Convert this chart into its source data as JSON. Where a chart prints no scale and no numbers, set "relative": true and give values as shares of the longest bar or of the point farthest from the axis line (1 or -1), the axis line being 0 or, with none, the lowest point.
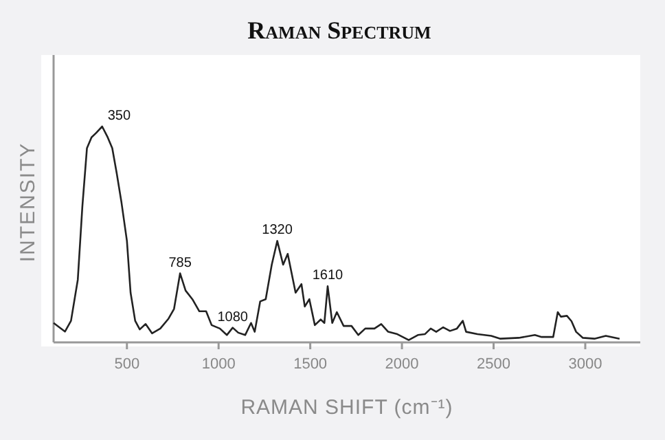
{
  "chart_data": {
    "type": "line",
    "title": "Raman Spectrum",
    "xlabel": "RAMAN SHIFT (cm⁻¹)",
    "ylabel": "INTENSITY",
    "relative": true,
    "xlim": [
      100,
      3300
    ],
    "xticks": [
      500,
      1000,
      1500,
      2000,
      2500,
      3000
    ],
    "tick_labels": "x",
    "marker": "none",
    "line_style": "solid",
    "series": [
      {
        "color": "#222222",
        "x": [
          100,
          162,
          195,
          232,
          257,
          282,
          307,
          332,
          365,
          395,
          420,
          445,
          470,
          500,
          520,
          545,
          570,
          602,
          637,
          682,
          727,
          757,
          790,
          820,
          857,
          895,
          932,
          962,
          1007,
          1045,
          1077,
          1107,
          1145,
          1177,
          1197,
          1227,
          1257,
          1290,
          1320,
          1352,
          1377,
          1420,
          1452,
          1470,
          1495,
          1525,
          1557,
          1577,
          1595,
          1620,
          1645,
          1682,
          1725,
          1762,
          1800,
          1850,
          1887,
          1925,
          1975,
          2037,
          2087,
          2125,
          2157,
          2187,
          2225,
          2262,
          2300,
          2332,
          2350,
          2412,
          2487,
          2537,
          2637,
          2725,
          2762,
          2825,
          2850,
          2867,
          2900,
          2925,
          2950,
          2987,
          3050,
          3112,
          3187
        ],
        "values": [
          0.09,
          0.05,
          0.1,
          0.29,
          0.63,
          0.9,
          0.95,
          0.97,
          1,
          0.95,
          0.9,
          0.78,
          0.65,
          0.47,
          0.23,
          0.1,
          0.06,
          0.085,
          0.042,
          0.064,
          0.11,
          0.155,
          0.32,
          0.24,
          0.2,
          0.144,
          0.144,
          0.08,
          0.064,
          0.034,
          0.068,
          0.045,
          0.034,
          0.09,
          0.049,
          0.19,
          0.2,
          0.36,
          0.47,
          0.36,
          0.41,
          0.23,
          0.27,
          0.166,
          0.2,
          0.08,
          0.106,
          0.09,
          0.26,
          0.09,
          0.14,
          0.076,
          0.076,
          0.034,
          0.064,
          0.064,
          0.085,
          0.049,
          0.038,
          0.011,
          0.034,
          0.038,
          0.064,
          0.049,
          0.07,
          0.053,
          0.064,
          0.1,
          0.049,
          0.038,
          0.03,
          0.017,
          0.021,
          0.034,
          0.025,
          0.025,
          0.14,
          0.119,
          0.123,
          0.098,
          0.049,
          0.021,
          0.017,
          0.03,
          0.017
        ]
      }
    ],
    "annotations": [
      {
        "text": "350",
        "x": 365,
        "y": 1
      },
      {
        "text": "785",
        "x": 790,
        "y": 0.32
      },
      {
        "text": "1080",
        "x": 1077,
        "y": 0.068
      },
      {
        "text": "1320",
        "x": 1320,
        "y": 0.47
      },
      {
        "text": "1610",
        "x": 1595,
        "y": 0.26
      }
    ]
  }
}
